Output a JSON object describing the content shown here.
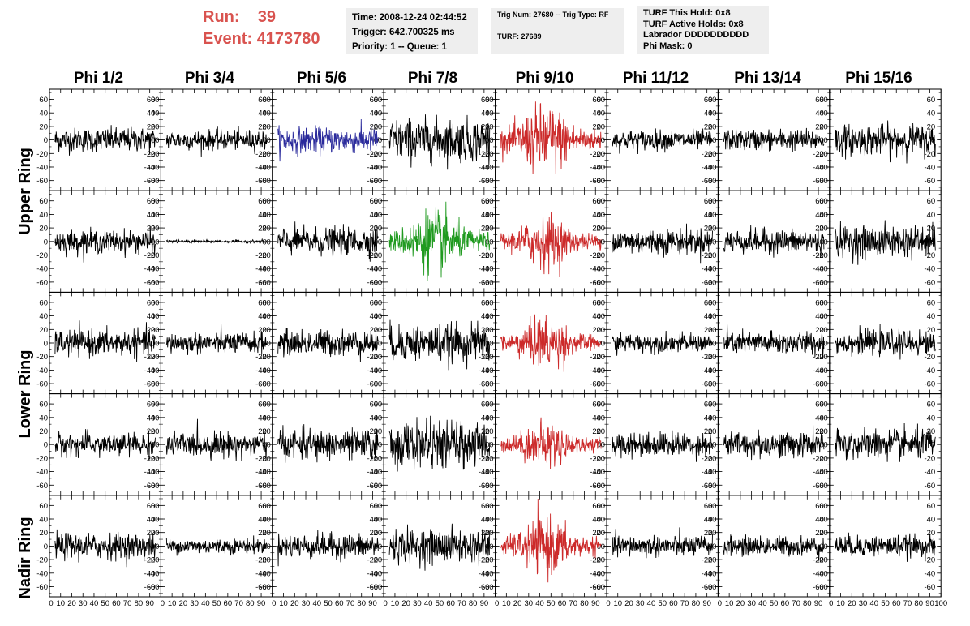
{
  "header": {
    "run_label": "Run:",
    "run_value": "39",
    "event_label": "Event:",
    "event_value": "4173780",
    "box1": [
      "Time: 2008-12-24 02:44:52",
      "Trigger: 642.700325 ms",
      "Priority: 1 -- Queue: 1"
    ],
    "box2": [
      "Trig Num: 27680 -- Trig Type: RF",
      "TURF: 27689"
    ],
    "box3": [
      "TURF This Hold: 0x8",
      "TURF Active Holds: 0x8",
      "Labrador DDDDDDDDDD",
      "Phi Mask: 0"
    ]
  },
  "columns": [
    "Phi 1/2",
    "Phi 3/4",
    "Phi 5/6",
    "Phi 7/8",
    "Phi 9/10",
    "Phi 11/12",
    "Phi 13/14",
    "Phi 15/16"
  ],
  "rows": [
    "Upper Ring",
    "Lower Ring",
    "Nadir Ring"
  ],
  "colors": {
    "black": "#000000",
    "blue": "#2b2b9c",
    "green": "#1f9a1f",
    "red": "#cc2a2a",
    "run_text": "#d9534f",
    "box_bg": "#eeeeee"
  },
  "chart_data": {
    "type": "line",
    "xlim": [
      0,
      100
    ],
    "ylim": [
      -75,
      75
    ],
    "y_ticks": [
      -60,
      -40,
      -20,
      0,
      20,
      40,
      60
    ],
    "x_ticks": [
      0,
      10,
      20,
      30,
      40,
      50,
      60,
      70,
      80,
      90,
      100
    ],
    "samples": 260,
    "panels": [
      [
        {
          "color": "black",
          "amp": 16
        },
        {
          "color": "black",
          "amp": 13
        },
        {
          "color": "blue",
          "amp": 17
        },
        {
          "color": "black",
          "amp": 28
        },
        {
          "color": "red",
          "amp": 38,
          "pulse": true
        },
        {
          "color": "black",
          "amp": 13
        },
        {
          "color": "black",
          "amp": 14
        },
        {
          "color": "black",
          "amp": 20
        }
      ],
      [
        {
          "color": "black",
          "amp": 15
        },
        {
          "color": "black",
          "amp": 2
        },
        {
          "color": "black",
          "amp": 18
        },
        {
          "color": "green",
          "amp": 34,
          "pulse": true
        },
        {
          "color": "red",
          "amp": 28,
          "pulse": true
        },
        {
          "color": "black",
          "amp": 17
        },
        {
          "color": "black",
          "amp": 16
        },
        {
          "color": "black",
          "amp": 21
        }
      ],
      [
        {
          "color": "black",
          "amp": 17
        },
        {
          "color": "black",
          "amp": 14
        },
        {
          "color": "black",
          "amp": 17
        },
        {
          "color": "black",
          "amp": 24
        },
        {
          "color": "red",
          "amp": 28,
          "pulse": true
        },
        {
          "color": "black",
          "amp": 12
        },
        {
          "color": "black",
          "amp": 15
        },
        {
          "color": "black",
          "amp": 16
        }
      ],
      [
        {
          "color": "black",
          "amp": 15
        },
        {
          "color": "black",
          "amp": 16
        },
        {
          "color": "black",
          "amp": 20
        },
        {
          "color": "black",
          "amp": 30
        },
        {
          "color": "red",
          "amp": 24,
          "pulse": true
        },
        {
          "color": "black",
          "amp": 16
        },
        {
          "color": "black",
          "amp": 17
        },
        {
          "color": "black",
          "amp": 20
        }
      ],
      [
        {
          "color": "black",
          "amp": 17
        },
        {
          "color": "black",
          "amp": 10
        },
        {
          "color": "black",
          "amp": 16
        },
        {
          "color": "black",
          "amp": 22
        },
        {
          "color": "red",
          "amp": 30,
          "pulse": true
        },
        {
          "color": "black",
          "amp": 14
        },
        {
          "color": "black",
          "amp": 13
        },
        {
          "color": "black",
          "amp": 14
        }
      ]
    ]
  }
}
